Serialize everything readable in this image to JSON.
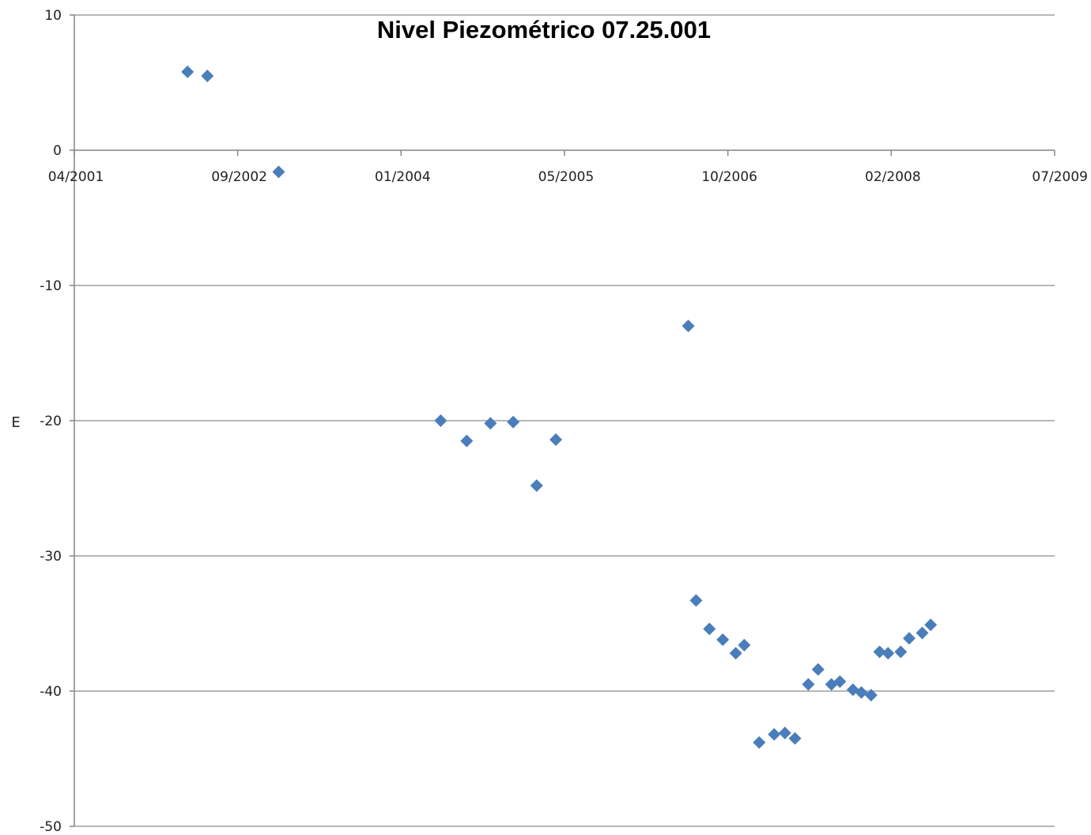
{
  "chart_data": {
    "type": "scatter",
    "title": "Nivel Piezométrico 07.25.001",
    "ylabel": "E",
    "xlabel": "",
    "x_type": "date",
    "xlim": [
      "2001-04-01",
      "2009-07-01"
    ],
    "ylim": [
      -50,
      10
    ],
    "y_ticks": [
      "10",
      "0",
      "-10",
      "-20",
      "-30",
      "-40",
      "-50"
    ],
    "x_ticks": [
      "04/2001",
      "09/2002",
      "01/2004",
      "05/2005",
      "10/2006",
      "02/2008",
      "07/2009"
    ],
    "grid": true,
    "legend": "none",
    "marker": "diamond",
    "color": "#4a7ebb",
    "series": [
      {
        "points": [
          {
            "x": "2002-03-15",
            "y": 5.8
          },
          {
            "x": "2002-05-15",
            "y": 5.5
          },
          {
            "x": "2002-12-20",
            "y": -1.6
          },
          {
            "x": "2004-05-01",
            "y": -20.0
          },
          {
            "x": "2004-07-20",
            "y": -21.5
          },
          {
            "x": "2004-10-01",
            "y": -20.2
          },
          {
            "x": "2004-12-10",
            "y": -20.1
          },
          {
            "x": "2005-02-20",
            "y": -24.8
          },
          {
            "x": "2005-04-20",
            "y": -21.4
          },
          {
            "x": "2006-06-01",
            "y": -13.0
          },
          {
            "x": "2006-06-25",
            "y": -33.3
          },
          {
            "x": "2006-08-05",
            "y": -35.4
          },
          {
            "x": "2006-09-15",
            "y": -36.2
          },
          {
            "x": "2006-10-25",
            "y": -37.2
          },
          {
            "x": "2006-11-20",
            "y": -36.6
          },
          {
            "x": "2007-01-05",
            "y": -43.8
          },
          {
            "x": "2007-02-20",
            "y": -43.2
          },
          {
            "x": "2007-03-25",
            "y": -43.1
          },
          {
            "x": "2007-04-25",
            "y": -43.5
          },
          {
            "x": "2007-06-05",
            "y": -39.5
          },
          {
            "x": "2007-07-05",
            "y": -38.4
          },
          {
            "x": "2007-08-15",
            "y": -39.5
          },
          {
            "x": "2007-09-10",
            "y": -39.3
          },
          {
            "x": "2007-10-20",
            "y": -39.9
          },
          {
            "x": "2007-11-15",
            "y": -40.1
          },
          {
            "x": "2007-12-15",
            "y": -40.3
          },
          {
            "x": "2008-01-10",
            "y": -37.1
          },
          {
            "x": "2008-02-05",
            "y": -37.2
          },
          {
            "x": "2008-03-15",
            "y": -37.1
          },
          {
            "x": "2008-04-10",
            "y": -36.1
          },
          {
            "x": "2008-05-20",
            "y": -35.7
          },
          {
            "x": "2008-06-15",
            "y": -35.1
          }
        ]
      }
    ]
  }
}
